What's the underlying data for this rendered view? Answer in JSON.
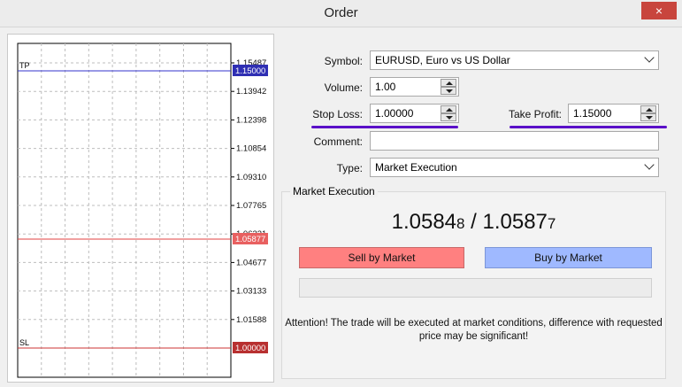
{
  "window": {
    "title": "Order",
    "close_label": "×"
  },
  "chart": {
    "tp_label": "TP",
    "sl_label": "SL",
    "y_ticks": [
      "1.15487",
      "1.13942",
      "1.12398",
      "1.10854",
      "1.09310",
      "1.07765",
      "1.06221",
      "1.04677",
      "1.03133",
      "1.01588"
    ],
    "tp_value": "1.15000",
    "current_value": "1.05877",
    "sl_value": "1.00000",
    "colors": {
      "tp": "#3333cc",
      "current": "#e04040",
      "sl": "#cc3333",
      "grid": "#bdbdbd"
    }
  },
  "form": {
    "symbol_label": "Symbol:",
    "symbol_value": "EURUSD, Euro vs US Dollar",
    "volume_label": "Volume:",
    "volume_value": "1.00",
    "stop_loss_label": "Stop Loss:",
    "stop_loss_value": "1.00000",
    "take_profit_label": "Take Profit:",
    "take_profit_value": "1.15000",
    "comment_label": "Comment:",
    "comment_value": "",
    "type_label": "Type:",
    "type_value": "Market Execution"
  },
  "market": {
    "group_title": "Market Execution",
    "bid_main": "1.0584",
    "bid_small": "8",
    "separator": " / ",
    "ask_main": "1.0587",
    "ask_small": "7",
    "sell_label": "Sell by Market",
    "buy_label": "Buy by Market",
    "attention_line1": "Attention! The trade will be executed at market conditions, difference with requested",
    "attention_line2": "price may be significant!"
  }
}
